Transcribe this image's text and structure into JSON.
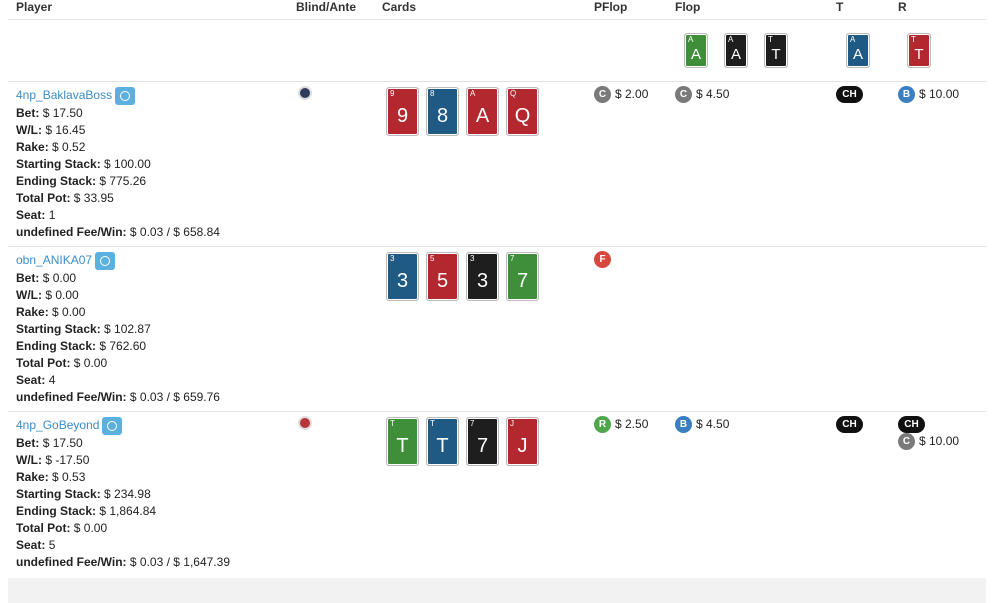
{
  "header": {
    "columns": [
      "Player",
      "Blind/Ante",
      "Cards",
      "PFlop",
      "Flop",
      "T",
      "R"
    ]
  },
  "board": {
    "flop": [
      {
        "rank": "A",
        "color": "#3e8e3a"
      },
      {
        "rank": "A",
        "color": "#1e1e1e"
      },
      {
        "rank": "T",
        "color": "#1e1e1e"
      }
    ],
    "turn": [
      {
        "rank": "A",
        "color": "#1f5a84"
      }
    ],
    "river": [
      {
        "rank": "T",
        "color": "#b3282e"
      }
    ]
  },
  "players": [
    {
      "name": "4np_BaklavaBoss",
      "blind_color": "#2d3b5c",
      "fields": [
        {
          "label": "Bet:",
          "value": "$ 17.50"
        },
        {
          "label": "W/L:",
          "value": "$ 16.45"
        },
        {
          "label": "Rake:",
          "value": "$ 0.52"
        },
        {
          "label": "Starting Stack:",
          "value": "$ 100.00"
        },
        {
          "label": "Ending Stack:",
          "value": "$ 775.26"
        },
        {
          "label": "Total Pot:",
          "value": "$ 33.95"
        },
        {
          "label": "Seat:",
          "value": "1"
        },
        {
          "label": "undefined Fee/Win:",
          "value": "$ 0.03 / $ 658.84"
        }
      ],
      "cards": [
        {
          "rank": "9",
          "color": "#b3282e"
        },
        {
          "rank": "8",
          "color": "#1f5a84"
        },
        {
          "rank": "A",
          "color": "#b3282e"
        },
        {
          "rank": "Q",
          "color": "#b3282e"
        }
      ],
      "actions": {
        "pflop": [
          {
            "code": "C",
            "color": "#7a7a7a",
            "amount": "$ 2.00"
          }
        ],
        "flop": [
          {
            "code": "C",
            "color": "#7a7a7a",
            "amount": "$ 4.50"
          }
        ],
        "turn": [
          {
            "code": "CH",
            "color": "#111111"
          }
        ],
        "river": [
          {
            "code": "B",
            "color": "#3a7fc1",
            "amount": "$ 10.00"
          }
        ]
      }
    },
    {
      "name": "obn_ANIKA07",
      "fields": [
        {
          "label": "Bet:",
          "value": "$ 0.00"
        },
        {
          "label": "W/L:",
          "value": "$ 0.00"
        },
        {
          "label": "Rake:",
          "value": "$ 0.00"
        },
        {
          "label": "Starting Stack:",
          "value": "$ 102.87"
        },
        {
          "label": "Ending Stack:",
          "value": "$ 762.60"
        },
        {
          "label": "Total Pot:",
          "value": "$ 0.00"
        },
        {
          "label": "Seat:",
          "value": "4"
        },
        {
          "label": "undefined Fee/Win:",
          "value": "$ 0.03 / $ 659.76"
        }
      ],
      "cards": [
        {
          "rank": "3",
          "color": "#1f5a84"
        },
        {
          "rank": "5",
          "color": "#b3282e"
        },
        {
          "rank": "3",
          "color": "#1e1e1e"
        },
        {
          "rank": "7",
          "color": "#3e8e3a"
        }
      ],
      "actions": {
        "pflop": [
          {
            "code": "F",
            "color": "#d9473c"
          }
        ]
      }
    },
    {
      "name": "4np_GoBeyond",
      "blind_color": "#b8353a",
      "fields": [
        {
          "label": "Bet:",
          "value": "$ 17.50"
        },
        {
          "label": "W/L:",
          "value": "$ -17.50"
        },
        {
          "label": "Rake:",
          "value": "$ 0.53"
        },
        {
          "label": "Starting Stack:",
          "value": "$ 234.98"
        },
        {
          "label": "Ending Stack:",
          "value": "$ 1,864.84"
        },
        {
          "label": "Total Pot:",
          "value": "$ 0.00"
        },
        {
          "label": "Seat:",
          "value": "5"
        },
        {
          "label": "undefined Fee/Win:",
          "value": "$ 0.03 / $ 1,647.39"
        }
      ],
      "cards": [
        {
          "rank": "T",
          "color": "#3e8e3a"
        },
        {
          "rank": "T",
          "color": "#1f5a84"
        },
        {
          "rank": "7",
          "color": "#1e1e1e"
        },
        {
          "rank": "J",
          "color": "#b3282e"
        }
      ],
      "actions": {
        "pflop": [
          {
            "code": "R",
            "color": "#4ea84a",
            "amount": "$ 2.50"
          }
        ],
        "flop": [
          {
            "code": "B",
            "color": "#3a7fc1",
            "amount": "$ 4.50"
          }
        ],
        "turn": [
          {
            "code": "CH",
            "color": "#111111"
          }
        ],
        "river": [
          {
            "code": "CH",
            "color": "#111111"
          },
          {
            "code": "C",
            "color": "#7a7a7a",
            "amount": "$ 10.00"
          }
        ]
      }
    }
  ]
}
